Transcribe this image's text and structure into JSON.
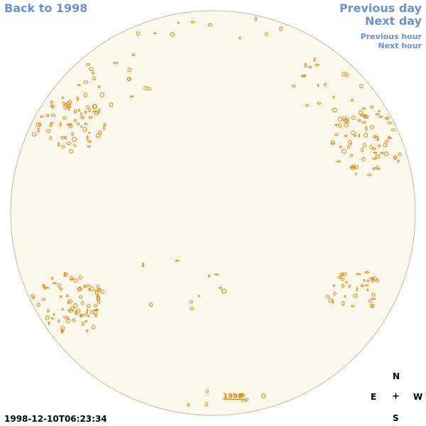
{
  "nav": {
    "back": "Back to 1998",
    "previous_day": "Previous day",
    "next_day": "Next day",
    "previous_hour": "Previous hour",
    "next_hour": "Next hour"
  },
  "disk": {
    "fill_color": "#fdf8ec",
    "border_color": "#c9b9a0",
    "contour_color": "#e8830f"
  },
  "year_link": "1998",
  "compass": {
    "north": "N",
    "east": "E",
    "center": "+",
    "west": "W",
    "south": "S"
  },
  "timestamp": "1998-12-10T06:23:34"
}
